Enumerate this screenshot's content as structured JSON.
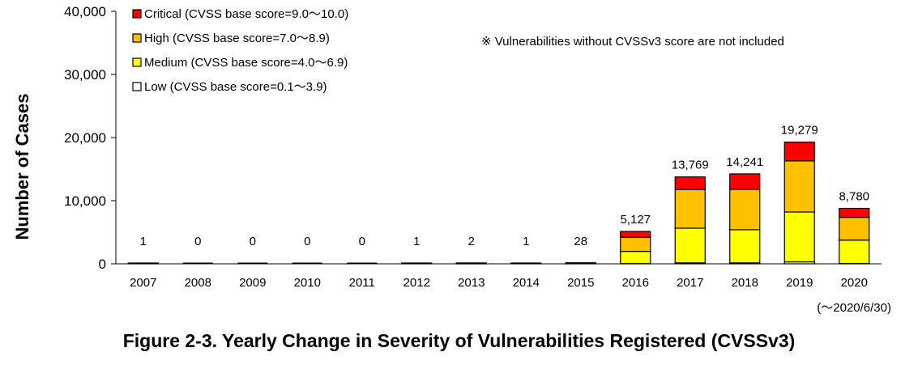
{
  "caption": "Figure 2-3. Yearly Change in Severity of Vulnerabilities Registered (CVSSv3)",
  "note": "※ Vulnerabilities without CVSSv3 score are not included",
  "date_note": "(～2020/6/30)",
  "chart_data": {
    "type": "bar",
    "stacked": true,
    "ylabel": "Number of Cases",
    "xlabel": "",
    "ylim": [
      0,
      40000
    ],
    "yticks": [
      "0",
      "10,000",
      "20,000",
      "30,000",
      "40,000"
    ],
    "ytick_values": [
      0,
      10000,
      20000,
      30000,
      40000
    ],
    "grid": false,
    "legend_position": "top-left",
    "categories": [
      "2007",
      "2008",
      "2009",
      "2010",
      "2011",
      "2012",
      "2013",
      "2014",
      "2015",
      "2016",
      "2017",
      "2018",
      "2019",
      "2020"
    ],
    "totals": [
      "1",
      "0",
      "0",
      "0",
      "0",
      "1",
      "2",
      "1",
      "28",
      "5,127",
      "13,769",
      "14,241",
      "19,279",
      "8,780"
    ],
    "series": [
      {
        "name": "Low (CVSS base score=0.1～3.9)",
        "color": "#ffffff",
        "values": [
          0,
          0,
          0,
          0,
          0,
          0,
          0,
          0,
          0,
          40,
          150,
          150,
          310,
          60
        ]
      },
      {
        "name": "Medium (CVSS base score=4.0～6.9)",
        "color": "#ffff00",
        "values": [
          1,
          0,
          0,
          0,
          0,
          1,
          1,
          1,
          12,
          1930,
          5500,
          5250,
          7900,
          3700
        ]
      },
      {
        "name": "High (CVSS base score=7.0～8.9)",
        "color": "#ffc000",
        "values": [
          0,
          0,
          0,
          0,
          0,
          0,
          1,
          0,
          12,
          2230,
          6100,
          6400,
          8100,
          3600
        ]
      },
      {
        "name": "Critical (CVSS base score=9.0～10.0)",
        "color": "#ff0000",
        "values": [
          0,
          0,
          0,
          0,
          0,
          0,
          0,
          0,
          4,
          927,
          2019,
          2441,
          2969,
          1420
        ]
      }
    ]
  }
}
